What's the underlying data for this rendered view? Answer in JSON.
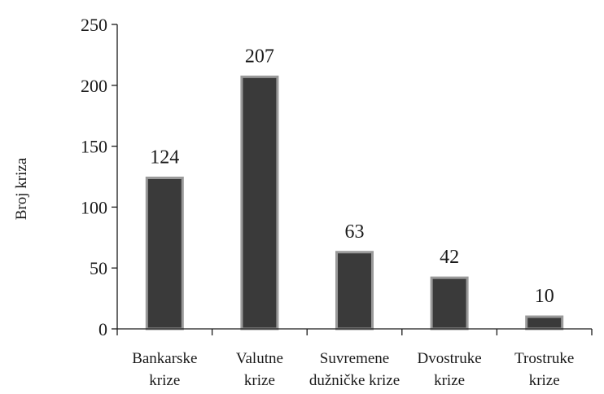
{
  "chart_data": {
    "type": "bar",
    "categories": [
      [
        "Bankarske",
        "krize"
      ],
      [
        "Valutne",
        "krize"
      ],
      [
        "Suvremene",
        "dužničke krize"
      ],
      [
        "Dvostruke",
        "krize"
      ],
      [
        "Trostruke",
        "krize"
      ]
    ],
    "values": [
      124,
      207,
      63,
      42,
      10
    ],
    "value_labels": [
      "124",
      "207",
      "63",
      "42",
      "10"
    ],
    "ylabel": "Broj kriza",
    "ylim": [
      0,
      250
    ],
    "yticks": [
      0,
      50,
      100,
      150,
      200,
      250
    ],
    "ytick_labels": [
      "0",
      "50",
      "100",
      "150",
      "200",
      "250"
    ],
    "grid": false,
    "colors": {
      "bar_fill": "#3a3a3a",
      "bar_edge": "#9a9a9a"
    }
  }
}
